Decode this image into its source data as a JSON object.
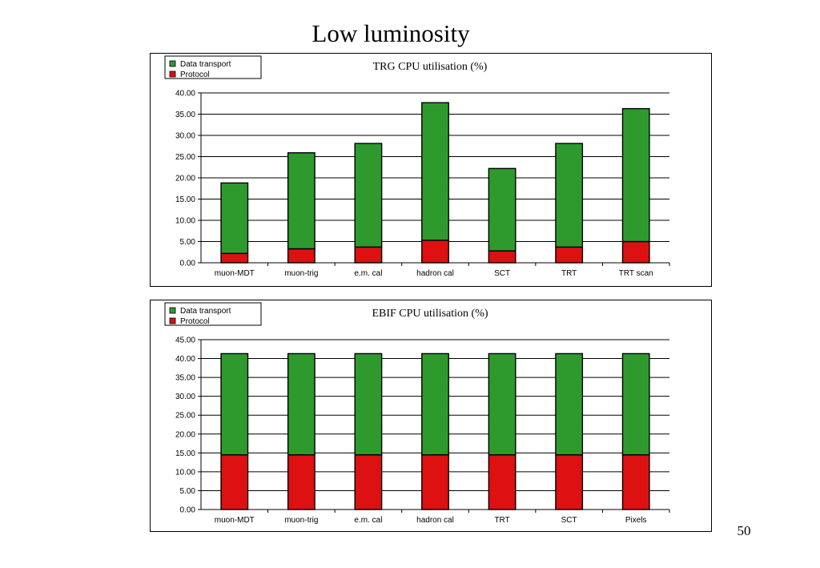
{
  "slide": {
    "title": "Low luminosity",
    "page_number": "50"
  },
  "colors": {
    "data_transport": "#2e9a2e",
    "protocol": "#dd1111",
    "axis": "#000000",
    "grid": "#000000"
  },
  "chart_data": [
    {
      "type": "bar",
      "stacked": true,
      "title": "TRG CPU utilisation (%)",
      "xlabel": "",
      "ylabel": "",
      "ylim": [
        0,
        40
      ],
      "ytick_step": 5,
      "ytick_decimals": 2,
      "grid": true,
      "legend_position": "top-left",
      "categories": [
        "muon-MDT",
        "muon-trig",
        "e.m. cal",
        "hadron cal",
        "SCT",
        "TRT",
        "TRT scan"
      ],
      "series": [
        {
          "name": "Protocol",
          "color": "#dd1111",
          "values": [
            2.2,
            3.3,
            3.7,
            5.3,
            2.8,
            3.7,
            5.0
          ]
        },
        {
          "name": "Data transport",
          "color": "#2e9a2e",
          "values": [
            16.6,
            22.6,
            24.4,
            32.4,
            19.4,
            24.4,
            31.3
          ]
        }
      ],
      "legend_order": [
        "Data transport",
        "Protocol"
      ]
    },
    {
      "type": "bar",
      "stacked": true,
      "title": "EBIF CPU utilisation (%)",
      "xlabel": "",
      "ylabel": "",
      "ylim": [
        0,
        45
      ],
      "ytick_step": 5,
      "ytick_decimals": 2,
      "grid": true,
      "legend_position": "top-left",
      "categories": [
        "muon-MDT",
        "muon-trig",
        "e.m. cal",
        "hadron cal",
        "TRT",
        "SCT",
        "Pixels"
      ],
      "series": [
        {
          "name": "Protocol",
          "color": "#dd1111",
          "values": [
            14.5,
            14.5,
            14.5,
            14.5,
            14.5,
            14.5,
            14.5
          ]
        },
        {
          "name": "Data transport",
          "color": "#2e9a2e",
          "values": [
            26.8,
            26.8,
            26.8,
            26.8,
            26.8,
            26.8,
            26.8
          ]
        }
      ],
      "legend_order": [
        "Data transport",
        "Protocol"
      ]
    }
  ]
}
